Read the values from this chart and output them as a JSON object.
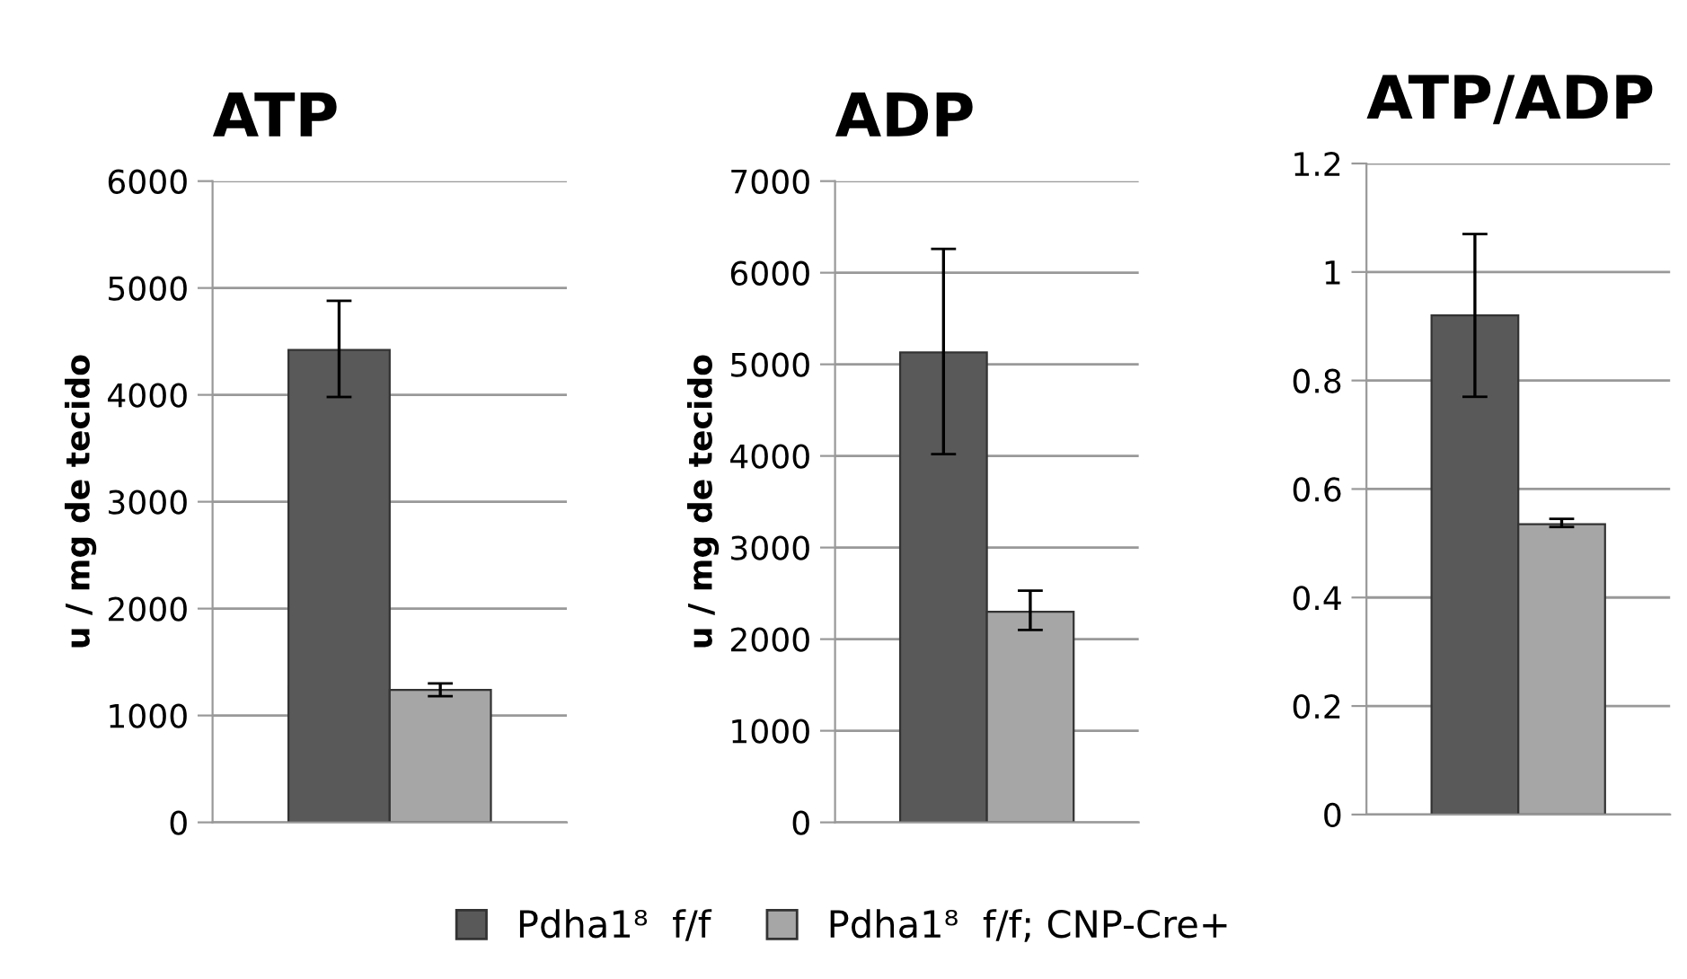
{
  "chart_data": [
    {
      "type": "bar",
      "title": "ATP",
      "ylabel": "u / mg de tecido",
      "categories": [
        null
      ],
      "ylim": [
        0,
        6000
      ],
      "yticks": [
        0,
        1000,
        2000,
        3000,
        4000,
        5000,
        6000
      ],
      "grid": "y",
      "legend": "bottom",
      "series": [
        {
          "name": "Pdha1⁸  f/f",
          "color": "#595959",
          "values": [
            4420
          ],
          "errors": [
            [
              3980,
              4880
            ]
          ]
        },
        {
          "name": "Pdha1⁸  f/f; CNP-Cre+",
          "color": "#a6a6a6",
          "values": [
            1240
          ],
          "errors": [
            [
              1180,
              1300
            ]
          ]
        }
      ]
    },
    {
      "type": "bar",
      "title": "ADP",
      "ylabel": "u / mg de tecido",
      "categories": [
        null
      ],
      "ylim": [
        0,
        7000
      ],
      "yticks": [
        0,
        1000,
        2000,
        3000,
        4000,
        5000,
        6000,
        7000
      ],
      "grid": "y",
      "series": [
        {
          "color": "#595959",
          "values": [
            5130
          ],
          "errors": [
            [
              4020,
              6260
            ]
          ]
        },
        {
          "color": "#a6a6a6",
          "values": [
            2300
          ],
          "errors": [
            [
              2100,
              2530
            ]
          ]
        }
      ]
    },
    {
      "type": "bar",
      "title": "ATP/ADP",
      "categories": [
        null
      ],
      "ylim": [
        0,
        1.2
      ],
      "yticks": [
        0,
        0.2,
        0.4,
        0.6,
        0.8,
        1,
        1.2
      ],
      "grid": "y",
      "series": [
        {
          "color": "#595959",
          "values": [
            0.92
          ],
          "errors": [
            [
              0.77,
              1.07
            ]
          ]
        },
        {
          "color": "#a6a6a6",
          "values": [
            0.535
          ],
          "errors": [
            [
              0.53,
              0.545
            ]
          ]
        }
      ]
    }
  ]
}
